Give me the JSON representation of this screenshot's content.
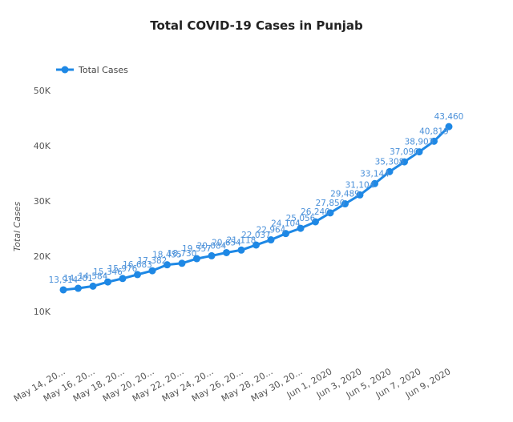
{
  "chart_data": {
    "type": "line",
    "title": "Total COVID-19 Cases in Punjab",
    "xlabel": "",
    "ylabel": "Total Cases",
    "ylim": [
      0,
      50000
    ],
    "yticks": [
      "10K",
      "20K",
      "30K",
      "40K",
      "50K"
    ],
    "ytick_values": [
      10000,
      20000,
      30000,
      40000,
      50000
    ],
    "legend": "top-left",
    "color": "#1e88e5",
    "x_tick_labels": [
      "May 14, 20...",
      "May 16, 20...",
      "May 18, 20...",
      "May 20, 20...",
      "May 22, 20...",
      "May 24, 20...",
      "May 26, 20...",
      "May 28, 20...",
      "May 30, 20...",
      "Jun 1, 2020",
      "Jun 3, 2020",
      "Jun 5, 2020",
      "Jun 7, 2020",
      "Jun 9, 2020"
    ],
    "series": [
      {
        "name": "Total Cases",
        "x": [
          "May 14, 2020",
          "May 15, 2020",
          "May 16, 2020",
          "May 17, 2020",
          "May 18, 2020",
          "May 19, 2020",
          "May 20, 2020",
          "May 21, 2020",
          "May 22, 2020",
          "May 23, 2020",
          "May 24, 2020",
          "May 25, 2020",
          "May 26, 2020",
          "May 27, 2020",
          "May 28, 2020",
          "May 29, 2020",
          "May 30, 2020",
          "May 31, 2020",
          "Jun 1, 2020",
          "Jun 2, 2020",
          "Jun 3, 2020",
          "Jun 4, 2020",
          "Jun 5, 2020",
          "Jun 6, 2020",
          "Jun 7, 2020",
          "Jun 8, 2020",
          "Jun 9, 2020"
        ],
        "values": [
          13914,
          14201,
          14584,
          15346,
          15976,
          16683,
          17382,
          18455,
          18730,
          19557,
          20084,
          20654,
          21118,
          22037,
          22964,
          24104,
          25056,
          26240,
          27850,
          29489,
          31104,
          33144,
          35308,
          37090,
          38903,
          40819,
          43460
        ],
        "labels": [
          "13,914",
          "14,201",
          "14,584",
          "15,346",
          "15,976",
          "16,683",
          "17,382",
          "18,455",
          "18,730",
          "19,557",
          "20,084",
          "20,654",
          "21,118",
          "22,037",
          "22,964",
          "24,104",
          "25,056",
          "26,240",
          "27,850",
          "29,489",
          "31,104",
          "33,144",
          "35,308",
          "37,090",
          "38,903",
          "40,819",
          "43,460"
        ]
      }
    ],
    "grid": false
  }
}
